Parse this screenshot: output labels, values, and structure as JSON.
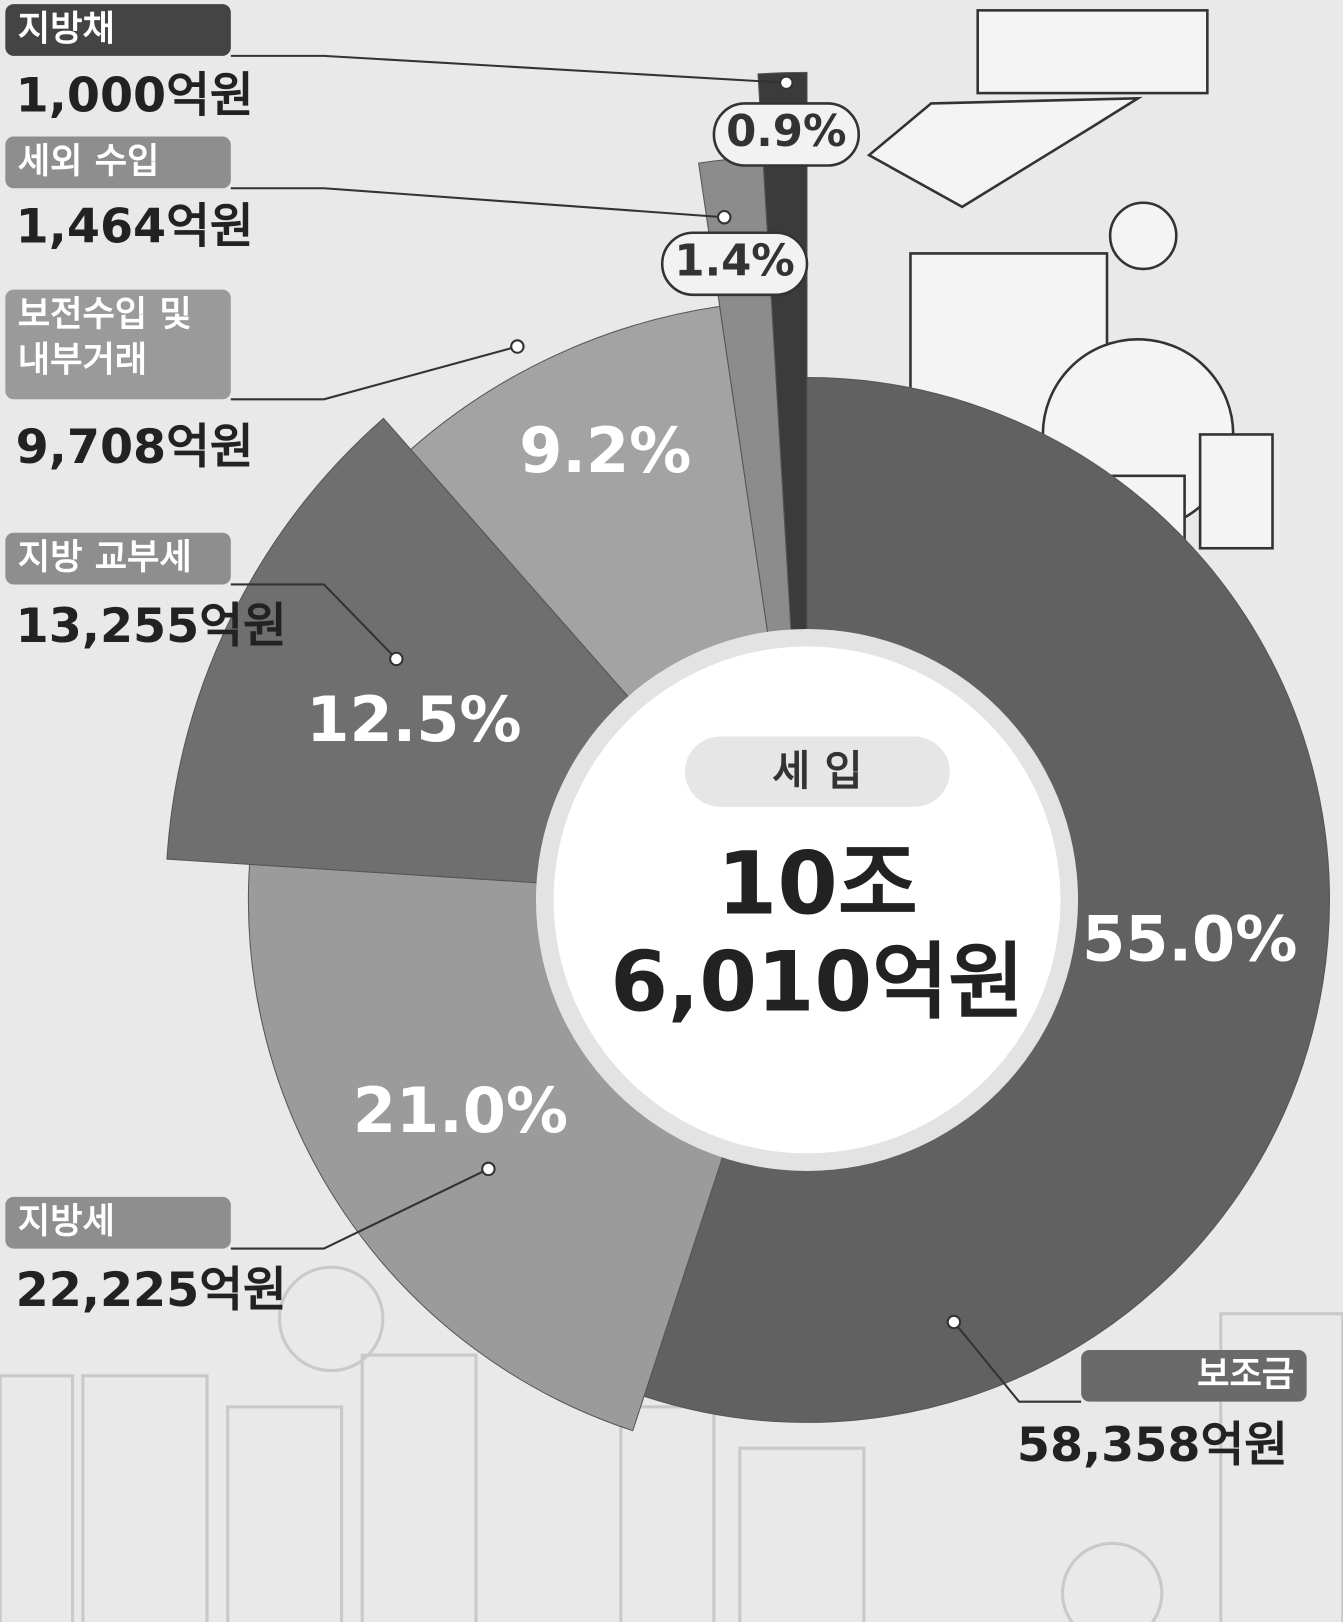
{
  "chart_data": {
    "type": "pie",
    "center_label": "세 입",
    "center_value_lines": [
      "10조",
      "6,010억원"
    ],
    "categories": [
      "보조금",
      "지방세",
      "지방 교부세",
      "보전수입 및 내부거래",
      "세외 수입",
      "지방채"
    ],
    "values": [
      58358,
      22225,
      13255,
      9708,
      1464,
      1000
    ],
    "value_labels": [
      "58,358억원",
      "22,225억원",
      "13,255억원",
      "9,708억원",
      "1,464억원",
      "1,000억원"
    ],
    "shares": [
      55.0,
      21.0,
      12.5,
      9.2,
      1.4,
      0.9
    ],
    "share_labels": [
      "55.0%",
      "21.0%",
      "12.5%",
      "9.2%",
      "1.4%",
      "0.9%"
    ],
    "colors": [
      "#616161",
      "#9b9b9b",
      "#6f6f6f",
      "#a3a3a3",
      "#8c8c8c",
      "#3b3b3b"
    ]
  }
}
